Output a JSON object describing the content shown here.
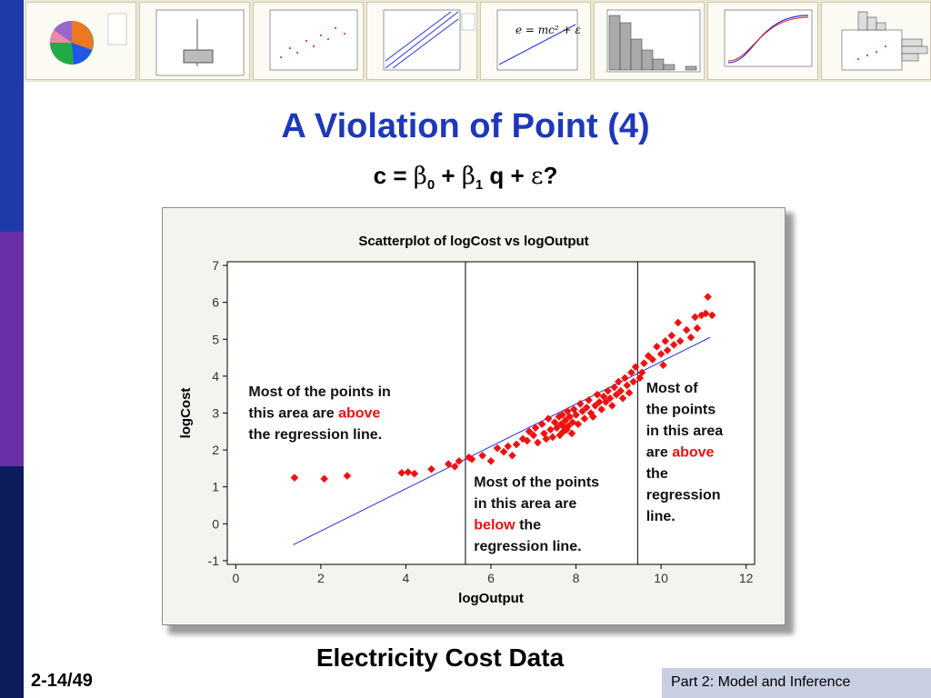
{
  "colors": {
    "title": "#1d38b8",
    "sidebar_top": "#1d3aa8",
    "sidebar_mid": "#6a2fa6",
    "sidebar_bottom": "#0e1c5c",
    "points": "#ee1111",
    "regression_line": "#2233dd",
    "highlight": "#ee1111",
    "footer_box": "#c9cfe3"
  },
  "header": {
    "thumbnails": [
      "pie-chart",
      "boxplot",
      "scatterplot",
      "probability-plot",
      "fitted-line-plot",
      "histogram",
      "cdf-plot",
      "marginal-plot"
    ]
  },
  "slide": {
    "title": "A Violation of Point (4)",
    "equation": {
      "c": "c",
      "eq": "=",
      "beta": "β",
      "sub0": "0",
      "plus1": "+",
      "sub1": "1",
      "q": "q",
      "plus2": "+",
      "eps": "ε",
      "q_mark": "?"
    },
    "caption": "Electricity Cost Data",
    "slide_number": "2-14/49",
    "footer": "Part 2: Model and Inference"
  },
  "chart_data": {
    "type": "scatter",
    "title": "Scatterplot of logCost vs logOutput",
    "xlabel": "logOutput",
    "ylabel": "logCost",
    "xlim": [
      -0.2,
      12.2
    ],
    "ylim": [
      -1.1,
      7.1
    ],
    "xticks": [
      0,
      2,
      4,
      6,
      8,
      10,
      12
    ],
    "yticks": [
      -1,
      0,
      1,
      2,
      3,
      4,
      5,
      6,
      7
    ],
    "grid": false,
    "vertical_lines": [
      5.4,
      9.45
    ],
    "regression_line": {
      "x": [
        1.35,
        11.15
      ],
      "y": [
        -0.57,
        5.05
      ]
    },
    "annotations": [
      {
        "lines": [
          [
            {
              "t": "Most of the points in",
              "h": false
            }
          ],
          [
            {
              "t": "this area are ",
              "h": false
            },
            {
              "t": "above",
              "h": true
            }
          ],
          [
            {
              "t": "the regression line",
              "h": false
            },
            {
              "t": ".",
              "h": false
            }
          ]
        ],
        "x": 0.3,
        "y": 3.45
      },
      {
        "lines": [
          [
            {
              "t": "Most of the points",
              "h": false
            }
          ],
          [
            {
              "t": "in this area are",
              "h": false
            }
          ],
          [
            {
              "t": "below",
              "h": true
            },
            {
              "t": " the",
              "h": false
            }
          ],
          [
            {
              "t": "regression line.",
              "h": false
            }
          ]
        ],
        "x": 5.6,
        "y": 1.0
      },
      {
        "lines": [
          [
            {
              "t": "Most of",
              "h": false
            }
          ],
          [
            {
              "t": "the points",
              "h": false
            }
          ],
          [
            {
              "t": "in this area",
              "h": false
            }
          ],
          [
            {
              "t": "are ",
              "h": false
            },
            {
              "t": "above",
              "h": true
            }
          ],
          [
            {
              "t": "the",
              "h": false
            }
          ],
          [
            {
              "t": "regression",
              "h": false
            }
          ],
          [
            {
              "t": "line.",
              "h": false
            }
          ]
        ],
        "x": 9.65,
        "y": 3.55
      }
    ],
    "points": [
      [
        1.38,
        1.25
      ],
      [
        2.08,
        1.22
      ],
      [
        2.62,
        1.3
      ],
      [
        3.9,
        1.38
      ],
      [
        4.05,
        1.4
      ],
      [
        4.2,
        1.36
      ],
      [
        4.6,
        1.48
      ],
      [
        5.0,
        1.62
      ],
      [
        5.15,
        1.55
      ],
      [
        5.25,
        1.7
      ],
      [
        5.48,
        1.8
      ],
      [
        5.55,
        1.75
      ],
      [
        5.8,
        1.85
      ],
      [
        6.0,
        1.7
      ],
      [
        6.15,
        2.05
      ],
      [
        6.3,
        1.95
      ],
      [
        6.5,
        1.85
      ],
      [
        6.6,
        2.15
      ],
      [
        6.75,
        2.3
      ],
      [
        6.9,
        2.5
      ],
      [
        7.0,
        2.4
      ],
      [
        7.05,
        2.6
      ],
      [
        7.1,
        2.2
      ],
      [
        7.2,
        2.7
      ],
      [
        7.25,
        2.45
      ],
      [
        7.3,
        2.3
      ],
      [
        7.35,
        2.85
      ],
      [
        7.4,
        2.55
      ],
      [
        7.45,
        2.35
      ],
      [
        7.5,
        2.75
      ],
      [
        7.55,
        2.6
      ],
      [
        7.6,
        2.9
      ],
      [
        7.62,
        2.4
      ],
      [
        7.65,
        2.7
      ],
      [
        7.68,
        2.95
      ],
      [
        7.7,
        2.5
      ],
      [
        7.72,
        2.62
      ],
      [
        7.75,
        2.8
      ],
      [
        7.78,
        2.55
      ],
      [
        7.8,
        3.05
      ],
      [
        7.82,
        2.65
      ],
      [
        7.85,
        2.9
      ],
      [
        7.9,
        2.45
      ],
      [
        7.92,
        2.75
      ],
      [
        7.95,
        3.1
      ],
      [
        8.0,
        2.95
      ],
      [
        8.05,
        2.7
      ],
      [
        8.1,
        3.25
      ],
      [
        8.15,
        3.05
      ],
      [
        8.2,
        2.85
      ],
      [
        8.3,
        3.35
      ],
      [
        8.35,
        3.0
      ],
      [
        8.45,
        3.2
      ],
      [
        8.5,
        3.5
      ],
      [
        8.55,
        3.3
      ],
      [
        8.6,
        3.1
      ],
      [
        8.65,
        3.45
      ],
      [
        8.7,
        3.3
      ],
      [
        8.75,
        3.6
      ],
      [
        8.8,
        3.4
      ],
      [
        8.85,
        3.2
      ],
      [
        8.9,
        3.7
      ],
      [
        8.95,
        3.5
      ],
      [
        9.0,
        3.85
      ],
      [
        9.05,
        3.6
      ],
      [
        9.1,
        3.4
      ],
      [
        9.15,
        3.95
      ],
      [
        9.2,
        3.75
      ],
      [
        9.25,
        3.55
      ],
      [
        9.3,
        4.1
      ],
      [
        9.4,
        4.25
      ],
      [
        9.5,
        3.95
      ],
      [
        9.6,
        4.35
      ],
      [
        9.7,
        4.55
      ],
      [
        9.8,
        4.45
      ],
      [
        9.9,
        4.8
      ],
      [
        10.0,
        4.6
      ],
      [
        10.05,
        4.3
      ],
      [
        10.1,
        4.95
      ],
      [
        10.15,
        4.7
      ],
      [
        10.25,
        5.1
      ],
      [
        10.3,
        4.85
      ],
      [
        10.4,
        5.45
      ],
      [
        10.45,
        4.95
      ],
      [
        10.6,
        5.25
      ],
      [
        10.7,
        5.05
      ],
      [
        10.8,
        5.6
      ],
      [
        10.85,
        5.3
      ],
      [
        10.95,
        5.65
      ],
      [
        11.05,
        5.7
      ],
      [
        11.1,
        6.15
      ],
      [
        11.2,
        5.65
      ],
      [
        9.55,
        4.1
      ],
      [
        9.35,
        3.85
      ],
      [
        8.25,
        3.15
      ],
      [
        8.4,
        2.9
      ],
      [
        6.85,
        2.25
      ],
      [
        6.4,
        2.1
      ]
    ]
  }
}
